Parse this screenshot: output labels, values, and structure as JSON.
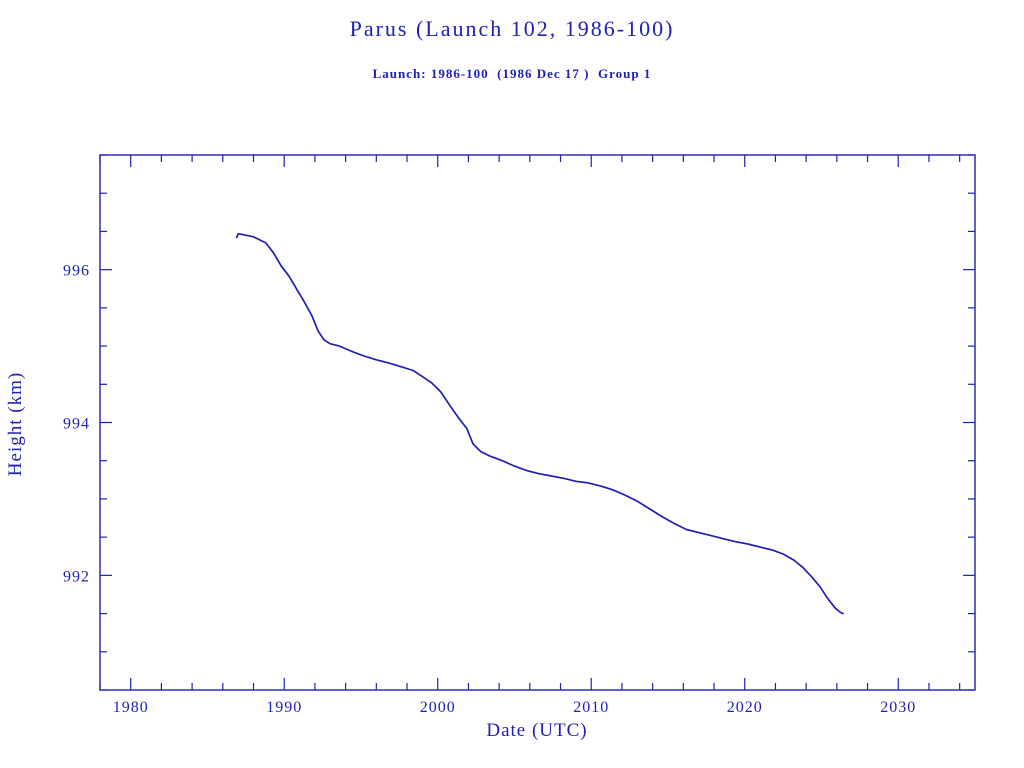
{
  "page": {
    "background": "#ffffff"
  },
  "colors": {
    "accent": "#1f1fb4"
  },
  "chart_data": {
    "type": "line",
    "title": "Parus (Launch 102, 1986-100)",
    "subtitle": "Launch: 1986-100  (1986 Dec 17 )  Group 1",
    "xlabel": "Date (UTC)",
    "ylabel": "Height (km)",
    "xlim": [
      1978,
      2035
    ],
    "ylim": [
      990.5,
      997.5
    ],
    "x_ticks": [
      1980,
      1990,
      2000,
      2010,
      2020,
      2030
    ],
    "y_ticks": [
      992,
      994,
      996
    ],
    "x_minor_step": 2,
    "y_minor_step": 0.5,
    "grid": false,
    "legend": false,
    "series": [
      {
        "name": "height_km",
        "color": "#1f1fb4",
        "points": [
          [
            1986.9,
            996.42
          ],
          [
            1987.0,
            996.47
          ],
          [
            1987.5,
            996.45
          ],
          [
            1988.0,
            996.43
          ],
          [
            1988.8,
            996.35
          ],
          [
            1989.3,
            996.22
          ],
          [
            1989.8,
            996.05
          ],
          [
            1990.3,
            995.92
          ],
          [
            1990.8,
            995.75
          ],
          [
            1991.3,
            995.58
          ],
          [
            1991.8,
            995.4
          ],
          [
            1992.2,
            995.2
          ],
          [
            1992.6,
            995.08
          ],
          [
            1993.0,
            995.03
          ],
          [
            1993.6,
            995.0
          ],
          [
            1994.4,
            994.93
          ],
          [
            1995.2,
            994.87
          ],
          [
            1996.0,
            994.82
          ],
          [
            1996.8,
            994.78
          ],
          [
            1997.6,
            994.73
          ],
          [
            1998.4,
            994.68
          ],
          [
            1999.0,
            994.6
          ],
          [
            1999.6,
            994.52
          ],
          [
            2000.2,
            994.4
          ],
          [
            2000.8,
            994.22
          ],
          [
            2001.4,
            994.05
          ],
          [
            2001.9,
            993.92
          ],
          [
            2002.3,
            993.72
          ],
          [
            2002.8,
            993.62
          ],
          [
            2003.4,
            993.56
          ],
          [
            2004.2,
            993.5
          ],
          [
            2005.0,
            993.43
          ],
          [
            2005.8,
            993.37
          ],
          [
            2006.6,
            993.33
          ],
          [
            2007.4,
            993.3
          ],
          [
            2008.2,
            993.27
          ],
          [
            2009.0,
            993.23
          ],
          [
            2009.8,
            993.21
          ],
          [
            2010.6,
            993.17
          ],
          [
            2011.4,
            993.12
          ],
          [
            2012.2,
            993.05
          ],
          [
            2013.0,
            992.97
          ],
          [
            2013.8,
            992.87
          ],
          [
            2014.6,
            992.77
          ],
          [
            2015.4,
            992.68
          ],
          [
            2016.2,
            992.6
          ],
          [
            2017.0,
            992.56
          ],
          [
            2017.8,
            992.52
          ],
          [
            2018.6,
            992.48
          ],
          [
            2019.4,
            992.44
          ],
          [
            2020.2,
            992.41
          ],
          [
            2021.0,
            992.37
          ],
          [
            2021.8,
            992.33
          ],
          [
            2022.5,
            992.28
          ],
          [
            2023.2,
            992.2
          ],
          [
            2023.8,
            992.1
          ],
          [
            2024.4,
            991.97
          ],
          [
            2024.9,
            991.85
          ],
          [
            2025.4,
            991.7
          ],
          [
            2025.9,
            991.57
          ],
          [
            2026.2,
            991.52
          ],
          [
            2026.4,
            991.5
          ]
        ]
      }
    ]
  }
}
